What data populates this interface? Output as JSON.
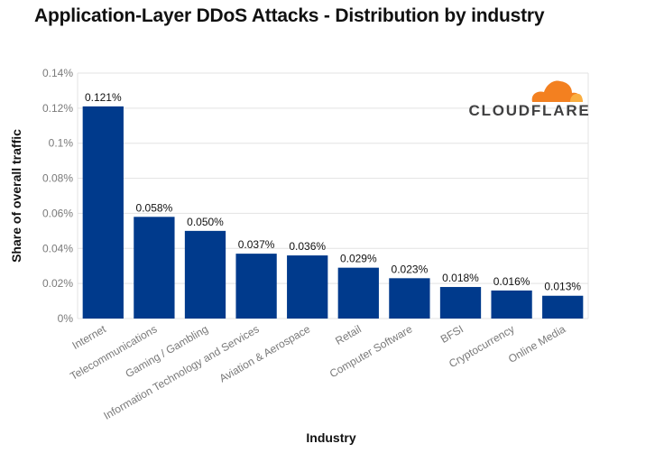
{
  "chart_data": {
    "type": "bar",
    "title": "Application-Layer DDoS Attacks - Distribution by industry",
    "xlabel": "Industry",
    "ylabel": "Share of overall traffic",
    "ylim": [
      0,
      0.14
    ],
    "yticks": [
      0,
      0.02,
      0.04,
      0.06,
      0.08,
      0.1,
      0.12,
      0.14
    ],
    "ytick_labels": [
      "0%",
      "0.02%",
      "0.04%",
      "0.06%",
      "0.08%",
      "0.1%",
      "0.12%",
      "0.14%"
    ],
    "categories": [
      "Internet",
      "Telecommunications",
      "Gaming / Gambling",
      "Information Technology and Services",
      "Aviation & Aerospace",
      "Retail",
      "Computer Software",
      "BFSI",
      "Cryptocurrency",
      "Online Media"
    ],
    "values": [
      0.121,
      0.058,
      0.05,
      0.037,
      0.036,
      0.029,
      0.023,
      0.018,
      0.016,
      0.013
    ],
    "value_labels": [
      "0.121%",
      "0.058%",
      "0.050%",
      "0.037%",
      "0.036%",
      "0.029%",
      "0.023%",
      "0.018%",
      "0.016%",
      "0.013%"
    ],
    "bar_color": "#003a8c",
    "grid": true
  },
  "logo": {
    "text": "CLOUDFLARE",
    "text_color": "#404041",
    "cloud_color": "#f38020",
    "cloud_light_color": "#faae40"
  }
}
